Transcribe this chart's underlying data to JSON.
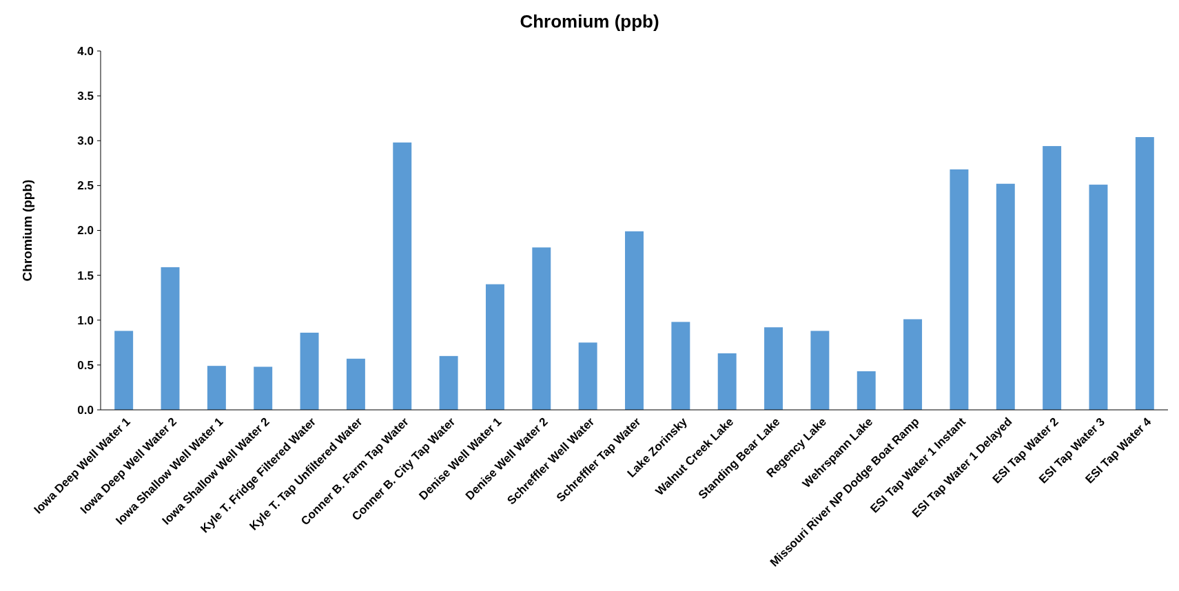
{
  "chart_data": {
    "type": "bar",
    "title": "Chromium (ppb)",
    "ylabel": "Chromium (ppb)",
    "categories": [
      "Iowa Deep Well  Water 1",
      "Iowa Deep Well Water 2",
      "Iowa Shallow Well Water 1",
      "Iowa Shallow Well Water 2",
      "Kyle T. Fridge Filtered Water",
      "Kyle T. Tap Unfiltered Water",
      "Conner B. Farm Tap Water",
      "Conner B. City Tap  Water",
      "Denise Well Water 1",
      "Denise Well Water 2",
      "Schreffler Well Water",
      "Schreffler Tap Water",
      "Lake Zorinsky",
      "Walnut Creek Lake",
      "Standing Bear Lake",
      "Regency Lake",
      "Wehrspann Lake",
      "Missouri River NP Dodge Boat Ramp",
      "ESI Tap Water 1 Instant",
      "ESI Tap Water 1 Delayed",
      "ESI Tap Water 2",
      "ESI Tap Water 3",
      "ESI Tap Water 4"
    ],
    "values": [
      0.88,
      1.59,
      0.49,
      0.48,
      0.86,
      0.57,
      2.98,
      0.6,
      1.4,
      1.81,
      0.75,
      1.99,
      0.98,
      0.63,
      0.92,
      0.88,
      0.43,
      1.01,
      2.68,
      2.52,
      2.94,
      2.51,
      3.04
    ],
    "color": "#5b9bd5",
    "ylim": [
      0,
      4
    ],
    "yticks": [
      {
        "value": 0,
        "label": "0.0"
      },
      {
        "value": 0.5,
        "label": "0.5"
      },
      {
        "value": 1,
        "label": "1.0"
      },
      {
        "value": 1.5,
        "label": "1.5"
      },
      {
        "value": 2,
        "label": "2.0"
      },
      {
        "value": 2.5,
        "label": "2.5"
      },
      {
        "value": 3,
        "label": "3.0"
      },
      {
        "value": 3.5,
        "label": "3.5"
      },
      {
        "value": 4,
        "label": "4.0"
      }
    ],
    "grid": false
  }
}
